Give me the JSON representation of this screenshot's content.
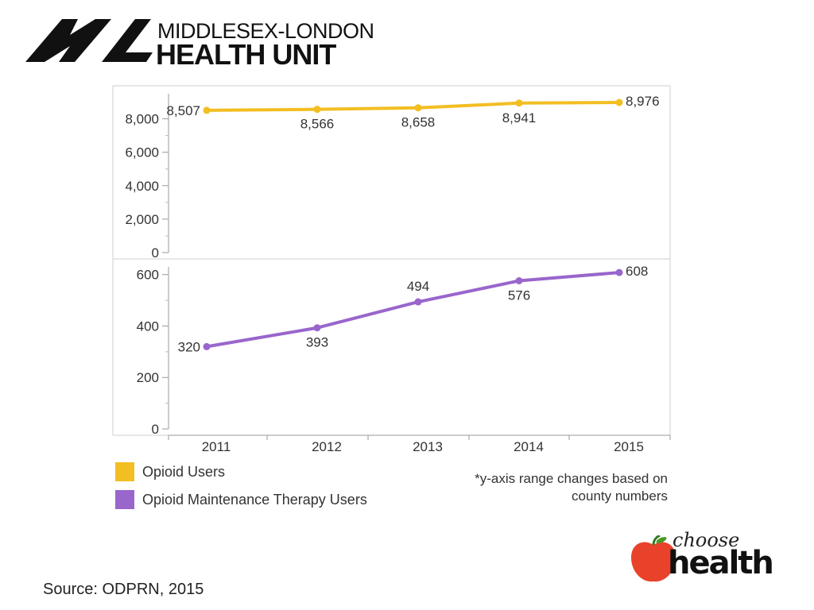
{
  "logo": {
    "line1": "MIDDLESEX-LONDON",
    "line2": "HEALTH UNIT",
    "mark": "ML"
  },
  "chart_data": {
    "type": "line",
    "categories": [
      "2011",
      "2012",
      "2013",
      "2014",
      "2015"
    ],
    "panels": [
      {
        "series_name": "Opioid Users",
        "color": "#F2BE22",
        "values": [
          8507,
          8566,
          8658,
          8941,
          8976
        ],
        "value_labels": [
          "8,507",
          "8,566",
          "8,658",
          "8,941",
          "8,976"
        ],
        "label_positions": [
          "left",
          "below",
          "below",
          "below",
          "right"
        ],
        "ylim": [
          0,
          9500
        ],
        "yticks": [
          0,
          2000,
          4000,
          6000,
          8000
        ],
        "ytick_labels": [
          "0",
          "2,000",
          "4,000",
          "6,000",
          "8,000"
        ]
      },
      {
        "series_name": "Opioid Maintenance Therapy Users",
        "color": "#9966CC",
        "values": [
          320,
          393,
          494,
          576,
          608
        ],
        "value_labels": [
          "320",
          "393",
          "494",
          "576",
          "608"
        ],
        "label_positions": [
          "left",
          "below",
          "above",
          "below",
          "right"
        ],
        "ylim": [
          0,
          630
        ],
        "yticks": [
          0,
          200,
          400,
          600
        ],
        "ytick_labels": [
          "0",
          "200",
          "400",
          "600"
        ]
      }
    ],
    "legend": [
      "Opioid Users",
      "Opioid Maintenance Therapy Users"
    ],
    "legend_placement": "bottom-left",
    "grid": false,
    "note": "*y-axis range changes based on county numbers"
  },
  "note_lines": [
    "*y-axis range changes based on",
    "county numbers"
  ],
  "source": "Source: ODPRN, 2015",
  "brand": {
    "choose": "choose",
    "health": "health",
    "apple_color": "#E8432A"
  }
}
